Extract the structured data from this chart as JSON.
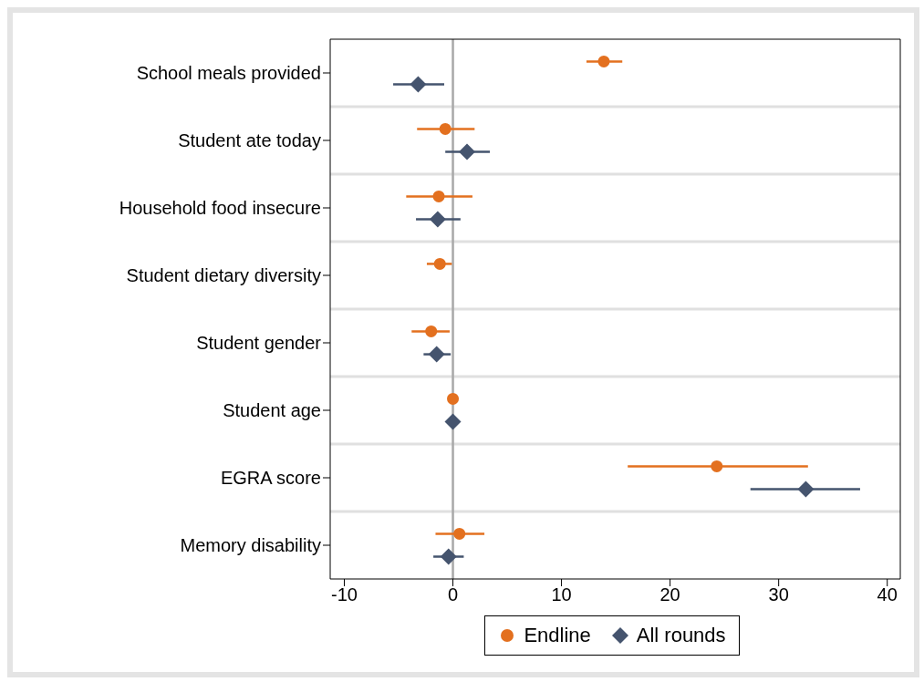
{
  "chart_data": {
    "type": "scatter",
    "orientation": "horizontal",
    "categories": [
      "School meals provided",
      "Student ate today",
      "Household food insecure",
      "Student dietary diversity",
      "Student gender",
      "Student age",
      "EGRA score",
      "Memory disability"
    ],
    "series": [
      {
        "name": "Endline",
        "color": "#e3701f",
        "marker": "circle",
        "values": [
          13.9,
          -0.7,
          -1.3,
          -1.2,
          -2.0,
          0,
          24.3,
          0.6
        ],
        "errors": [
          [
            12.3,
            15.6
          ],
          [
            -3.3,
            2.0
          ],
          [
            -4.3,
            1.8
          ],
          [
            -2.4,
            -0.1
          ],
          [
            -3.8,
            -0.3
          ],
          null,
          [
            16.1,
            32.7
          ],
          [
            -1.6,
            2.9
          ]
        ]
      },
      {
        "name": "All rounds",
        "color": "#45546e",
        "marker": "diamond",
        "values": [
          -3.2,
          1.3,
          -1.4,
          null,
          -1.5,
          0,
          32.5,
          -0.4
        ],
        "errors": [
          [
            -5.5,
            -0.8
          ],
          [
            -0.7,
            3.4
          ],
          [
            -3.4,
            0.7
          ],
          null,
          [
            -2.7,
            -0.2
          ],
          null,
          [
            27.4,
            37.5
          ],
          [
            -1.8,
            1.0
          ]
        ]
      }
    ],
    "xlim": [
      -11.3,
      41.2
    ],
    "xticks": [
      -10,
      0,
      10,
      20,
      30,
      40
    ],
    "ref_lines": [
      {
        "axis": "x",
        "value": 0,
        "color": "#a8a8a8"
      }
    ],
    "grid": "y",
    "legend": "bottom"
  }
}
